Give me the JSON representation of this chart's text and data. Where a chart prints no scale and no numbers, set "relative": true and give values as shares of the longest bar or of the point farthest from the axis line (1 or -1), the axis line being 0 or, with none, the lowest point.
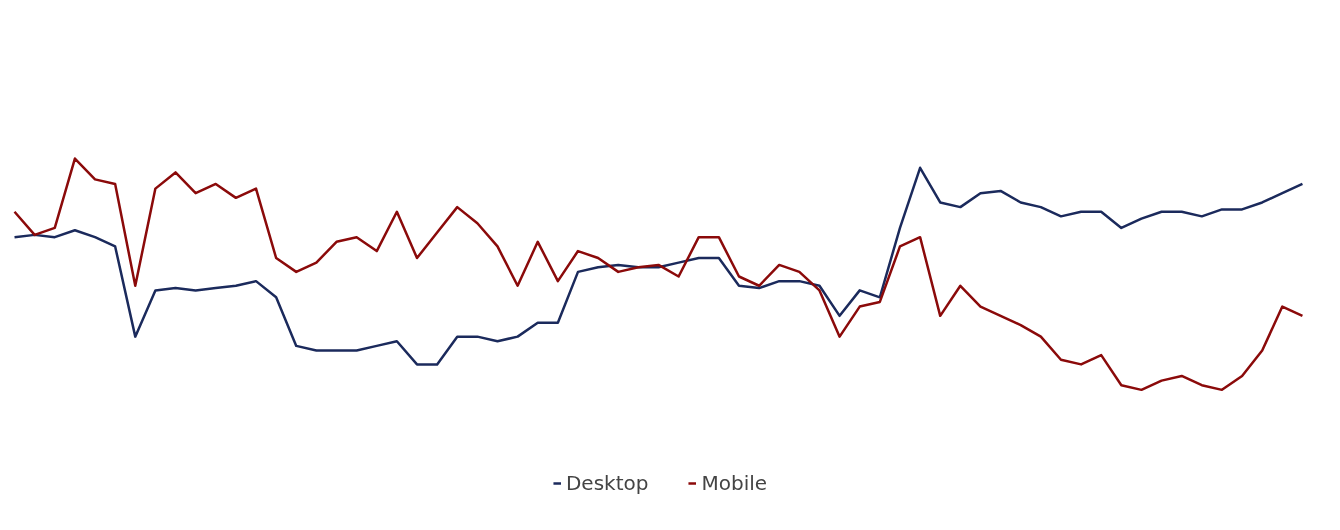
{
  "chart_data": {
    "type": "line",
    "relative": true,
    "legend": "bottom",
    "categories": [
      null,
      null,
      null,
      null,
      null,
      null,
      null,
      null,
      null,
      null,
      null,
      null,
      null,
      null,
      null,
      null,
      null,
      null,
      null,
      null,
      null,
      null,
      null,
      null,
      null,
      null,
      null,
      null,
      null,
      null,
      null,
      null,
      null,
      null,
      null,
      null,
      null,
      null,
      null,
      null,
      null,
      null,
      null,
      null,
      null,
      null,
      null,
      null,
      null,
      null,
      null,
      null,
      null,
      null,
      null,
      null,
      null,
      null,
      null,
      null,
      null,
      null,
      null,
      null,
      null
    ],
    "series": [
      {
        "name": "Desktop",
        "color": "#1b2a5c",
        "values": [
          0.66,
          0.67,
          0.66,
          0.69,
          0.66,
          0.62,
          0.23,
          0.43,
          0.44,
          0.43,
          0.44,
          0.45,
          0.47,
          0.4,
          0.19,
          0.17,
          0.17,
          0.17,
          0.19,
          0.21,
          0.11,
          0.11,
          0.23,
          0.23,
          0.21,
          0.23,
          0.29,
          0.29,
          0.51,
          0.53,
          0.54,
          0.53,
          0.53,
          0.55,
          0.57,
          0.57,
          0.45,
          0.44,
          0.47,
          0.47,
          0.45,
          0.32,
          0.43,
          0.4,
          0.7,
          0.96,
          0.81,
          0.79,
          0.85,
          0.86,
          0.81,
          0.79,
          0.75,
          0.77,
          0.77,
          0.7,
          0.74,
          0.77,
          0.77,
          0.75,
          0.78,
          0.78,
          0.81,
          0.85,
          0.89
        ]
      },
      {
        "name": "Mobile",
        "color": "#8b0a0a",
        "values": [
          0.77,
          0.67,
          0.7,
          1,
          0.91,
          0.89,
          0.45,
          0.87,
          0.94,
          0.85,
          0.89,
          0.83,
          0.87,
          0.57,
          0.51,
          0.55,
          0.64,
          0.66,
          0.6,
          0.77,
          0.57,
          0.68,
          0.79,
          0.72,
          0.62,
          0.45,
          0.64,
          0.47,
          0.6,
          0.57,
          0.51,
          0.53,
          0.54,
          0.49,
          0.66,
          0.66,
          0.49,
          0.45,
          0.54,
          0.51,
          0.43,
          0.23,
          0.36,
          0.38,
          0.62,
          0.66,
          0.32,
          0.45,
          0.36,
          0.32,
          0.28,
          0.23,
          0.13,
          0.11,
          0.15,
          0.02,
          0,
          0.04,
          0.06,
          0.02,
          0,
          0.06,
          0.17,
          0.36,
          0.32
        ]
      }
    ]
  }
}
